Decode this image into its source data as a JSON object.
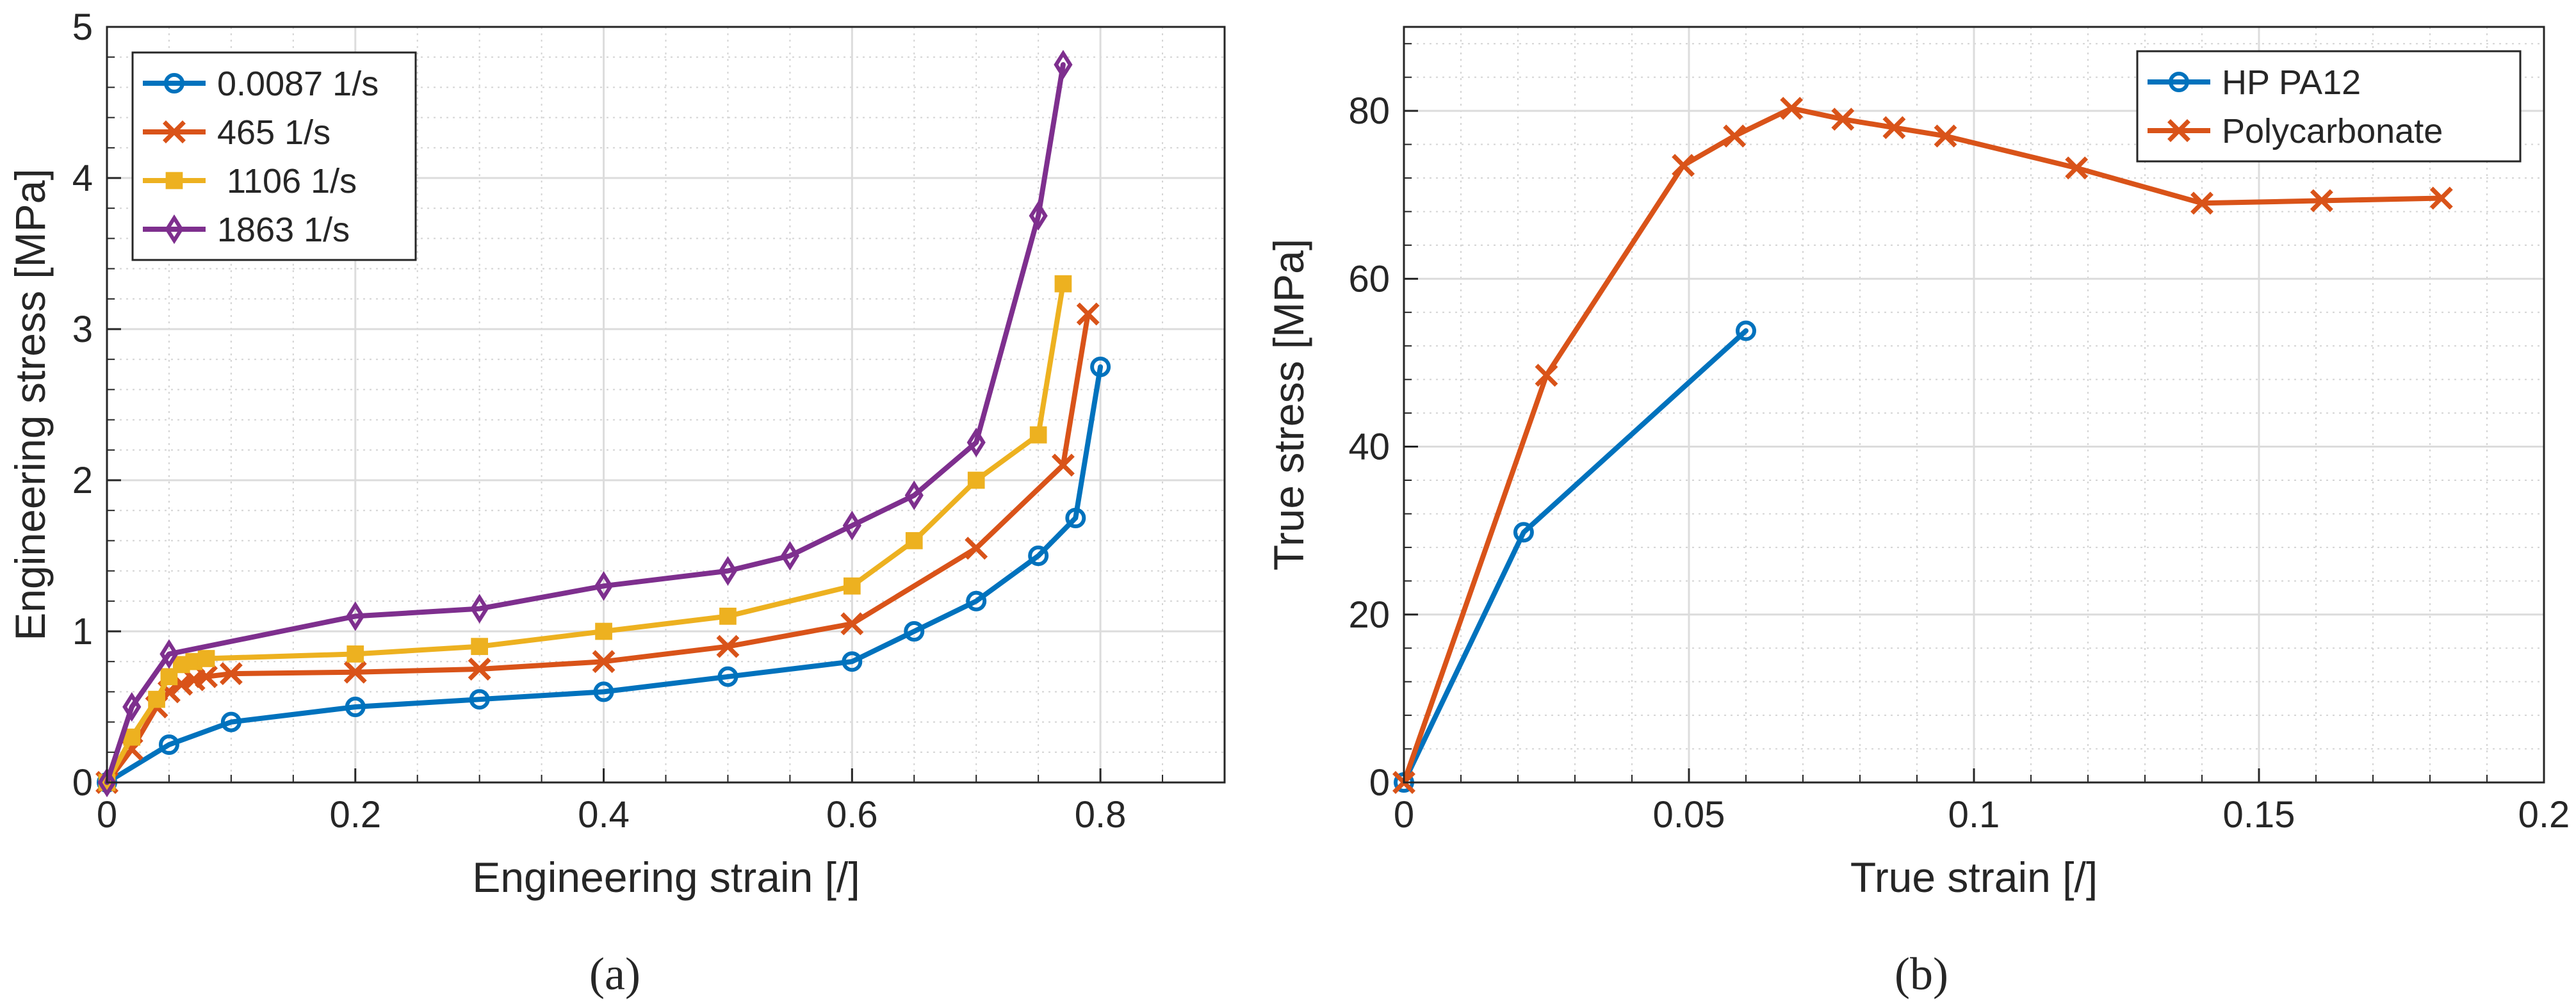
{
  "chart_data": [
    {
      "panel_label": "(a)",
      "type": "line",
      "xlabel": "Engineering strain [/]",
      "ylabel": "Engineering stress [MPa]",
      "xlim": [
        0,
        0.9
      ],
      "ylim": [
        0,
        5
      ],
      "xticks": [
        0,
        0.2,
        0.4,
        0.6,
        0.8
      ],
      "xtick_labels": [
        "0",
        "0.2",
        "0.4",
        "0.6",
        "0.8"
      ],
      "xminor_step": 0.05,
      "yticks": [
        0,
        1,
        2,
        3,
        4,
        5
      ],
      "ytick_labels": [
        "0",
        "1",
        "2",
        "3",
        "4",
        "5"
      ],
      "yminor_step": 0.2,
      "grid": true,
      "legend_position": "top-left",
      "series": [
        {
          "name": "0.0087 1/s",
          "color": "#0072BD",
          "marker": "circle",
          "x": [
            0,
            0.05,
            0.1,
            0.2,
            0.3,
            0.4,
            0.5,
            0.6,
            0.65,
            0.7,
            0.75,
            0.78,
            0.8
          ],
          "y": [
            0,
            0.25,
            0.4,
            0.5,
            0.55,
            0.6,
            0.7,
            0.8,
            1.0,
            1.2,
            1.5,
            1.75,
            2.75
          ]
        },
        {
          "name": "465 1/s",
          "color": "#D95319",
          "marker": "x",
          "x": [
            0,
            0.02,
            0.04,
            0.05,
            0.06,
            0.07,
            0.08,
            0.1,
            0.2,
            0.3,
            0.4,
            0.5,
            0.6,
            0.7,
            0.77,
            0.79
          ],
          "y": [
            0,
            0.22,
            0.5,
            0.6,
            0.65,
            0.68,
            0.7,
            0.72,
            0.73,
            0.75,
            0.8,
            0.9,
            1.05,
            1.55,
            2.1,
            3.1
          ]
        },
        {
          "name": " 1106 1/s",
          "color": "#EDB120",
          "marker": "square",
          "x": [
            0,
            0.02,
            0.04,
            0.05,
            0.06,
            0.07,
            0.08,
            0.2,
            0.3,
            0.4,
            0.5,
            0.6,
            0.65,
            0.7,
            0.75,
            0.77
          ],
          "y": [
            0,
            0.3,
            0.55,
            0.7,
            0.78,
            0.8,
            0.82,
            0.85,
            0.9,
            1.0,
            1.1,
            1.3,
            1.6,
            2.0,
            2.3,
            3.3
          ]
        },
        {
          "name": "1863 1/s",
          "color": "#7E2F8E",
          "marker": "diamond",
          "x": [
            0,
            0.02,
            0.05,
            0.2,
            0.3,
            0.4,
            0.5,
            0.55,
            0.6,
            0.65,
            0.7,
            0.75,
            0.77
          ],
          "y": [
            0,
            0.5,
            0.85,
            1.1,
            1.15,
            1.3,
            1.4,
            1.5,
            1.7,
            1.9,
            2.25,
            3.75,
            4.75
          ]
        }
      ]
    },
    {
      "panel_label": "(b)",
      "type": "line",
      "xlabel": "True strain [/]",
      "ylabel": "True stress [MPa]",
      "xlim": [
        0,
        0.2
      ],
      "ylim": [
        0,
        90
      ],
      "xticks": [
        0,
        0.05,
        0.1,
        0.15,
        0.2
      ],
      "xtick_labels": [
        "0",
        "0.05",
        "0.1",
        "0.15",
        "0.2"
      ],
      "xminor_step": 0.01,
      "yticks": [
        0,
        20,
        40,
        60,
        80
      ],
      "ytick_labels": [
        "0",
        "20",
        "40",
        "60",
        "80"
      ],
      "yminor_step": 4,
      "grid": true,
      "legend_position": "top-right",
      "series": [
        {
          "name": "HP PA12",
          "color": "#0072BD",
          "marker": "circle",
          "x": [
            0,
            0.021,
            0.06
          ],
          "y": [
            0,
            29.8,
            53.8
          ]
        },
        {
          "name": "Polycarbonate",
          "color": "#D95319",
          "marker": "x",
          "x": [
            0,
            0.025,
            0.049,
            0.058,
            0.068,
            0.077,
            0.086,
            0.095,
            0.118,
            0.14,
            0.161,
            0.182
          ],
          "y": [
            0,
            48.5,
            73.5,
            77,
            80.3,
            79,
            78,
            77,
            73.2,
            69,
            69.3,
            69.6
          ]
        }
      ]
    }
  ]
}
